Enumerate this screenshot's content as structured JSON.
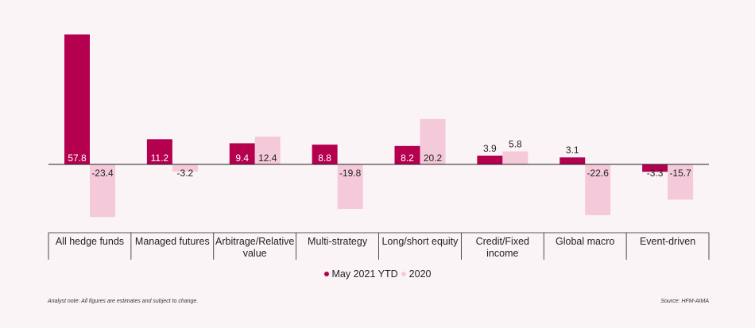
{
  "chart_data": {
    "type": "bar",
    "categories": [
      [
        "All hedge funds"
      ],
      [
        "Managed futures"
      ],
      [
        "Arbitrage/Relative",
        "value"
      ],
      [
        "Multi-strategy"
      ],
      [
        "Long/short equity"
      ],
      [
        "Credit/Fixed",
        "income"
      ],
      [
        "Global macro"
      ],
      [
        "Event-driven"
      ]
    ],
    "series": [
      {
        "name": "May 2021 YTD",
        "color": "#b5004f",
        "values": [
          57.8,
          11.2,
          9.4,
          8.8,
          8.2,
          3.9,
          3.1,
          -3.3
        ]
      },
      {
        "name": "2020",
        "color": "#f4cadb",
        "values": [
          -23.4,
          -3.2,
          12.4,
          -19.8,
          20.2,
          5.8,
          -22.6,
          -15.7
        ]
      }
    ],
    "ylim": [
      -26,
      58
    ],
    "legend_position": "bottom-center",
    "grid": false
  },
  "legend": {
    "series1": "May 2021 YTD",
    "series2": "2020"
  },
  "footer": {
    "note": "Analyst note: All figures are estimates and subject to change.",
    "source": "Source: HFM-AIMA"
  }
}
